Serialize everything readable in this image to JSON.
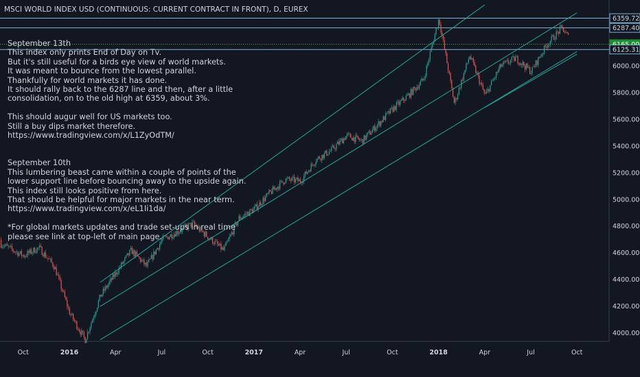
{
  "chart_data": {
    "type": "candlestick",
    "title": "MSCI WORLD INDEX USD (CONTINUOUS: CURRENT CONTRACT IN FRONT), D, EUREX",
    "xlabel": "",
    "ylabel": "",
    "ylim": [
      3860,
      6460
    ],
    "grid": false,
    "x_ticks": [
      "Oct",
      "2016",
      "Apr",
      "Jul",
      "Oct",
      "2017",
      "Apr",
      "Jul",
      "Oct",
      "2018",
      "Apr",
      "Jul",
      "Oct"
    ],
    "y_ticks": [
      "4000.0000",
      "4200.0000",
      "4400.0000",
      "4600.0000",
      "4800.0000",
      "5000.0000",
      "5200.0000",
      "5400.0000",
      "5600.0000",
      "5800.0000",
      "6000.0000"
    ],
    "price_path": [
      {
        "x": "2015-08",
        "y": 4700
      },
      {
        "x": "2015-10",
        "y": 4580
      },
      {
        "x": "2015-11",
        "y": 4640
      },
      {
        "x": "2015-12",
        "y": 4500
      },
      {
        "x": "2016-01",
        "y": 4150
      },
      {
        "x": "2016-02",
        "y": 3950
      },
      {
        "x": "2016-03",
        "y": 4280
      },
      {
        "x": "2016-04",
        "y": 4450
      },
      {
        "x": "2016-05",
        "y": 4620
      },
      {
        "x": "2016-06",
        "y": 4500
      },
      {
        "x": "2016-07",
        "y": 4700
      },
      {
        "x": "2016-08",
        "y": 4760
      },
      {
        "x": "2016-09",
        "y": 4820
      },
      {
        "x": "2016-10",
        "y": 4720
      },
      {
        "x": "2016-11",
        "y": 4620
      },
      {
        "x": "2016-12",
        "y": 4860
      },
      {
        "x": "2017-01",
        "y": 4930
      },
      {
        "x": "2017-02",
        "y": 5050
      },
      {
        "x": "2017-03",
        "y": 5150
      },
      {
        "x": "2017-04",
        "y": 5140
      },
      {
        "x": "2017-05",
        "y": 5300
      },
      {
        "x": "2017-06",
        "y": 5370
      },
      {
        "x": "2017-07",
        "y": 5480
      },
      {
        "x": "2017-08",
        "y": 5440
      },
      {
        "x": "2017-09",
        "y": 5560
      },
      {
        "x": "2017-10",
        "y": 5680
      },
      {
        "x": "2017-11",
        "y": 5780
      },
      {
        "x": "2017-12",
        "y": 5900
      },
      {
        "x": "2018-01",
        "y": 6359
      },
      {
        "x": "2018-02",
        "y": 5720
      },
      {
        "x": "2018-03",
        "y": 6080
      },
      {
        "x": "2018-04",
        "y": 5780
      },
      {
        "x": "2018-05",
        "y": 6000
      },
      {
        "x": "2018-06",
        "y": 6060
      },
      {
        "x": "2018-07",
        "y": 5960
      },
      {
        "x": "2018-08",
        "y": 6160
      },
      {
        "x": "2018-09",
        "y": 6287
      },
      {
        "x": "2018-10",
        "y": 6120
      },
      {
        "x": "2018-10",
        "y": 6165
      }
    ],
    "horizontal_levels": [
      {
        "label": "6359.7238",
        "value": 6359.7238,
        "color": "#7fb3d5"
      },
      {
        "label": "6287.4082",
        "value": 6287.4082,
        "color": "#7fb3d5"
      },
      {
        "label": "6165.0000",
        "value": 6165.0,
        "color": "#4caf50",
        "style": "dotted",
        "current": true
      },
      {
        "label": "6125.3128",
        "value": 6125.3128,
        "color": "#7fb3d5"
      }
    ],
    "channels": [
      {
        "name": "outer",
        "upper": [
          {
            "x": "2016-03",
            "y": 4380
          },
          {
            "x": "2018-04",
            "y": 6460
          }
        ],
        "lower": [
          {
            "x": "2016-03",
            "y": 3950
          },
          {
            "x": "2018-10",
            "y": 6110
          }
        ]
      },
      {
        "name": "inner",
        "upper": [
          {
            "x": "2016-03",
            "y": 4200
          },
          {
            "x": "2018-10",
            "y": 6400
          }
        ],
        "lower": [
          {
            "x": "2018-04",
            "y": 5690
          },
          {
            "x": "2018-10",
            "y": 6090
          }
        ]
      }
    ],
    "colors": {
      "up": "#26a69a",
      "down": "#ef5350",
      "bg": "#131722",
      "text": "#d1d4dc",
      "channel": "#26a69a",
      "level": "#7fb3d5"
    },
    "annotation": "September 13th\nThis index only prints End of Day on Tv.\nBut it's still useful for a birds eye view of world markets.\nIt was meant to bounce from the lowest parallel.\nThankfully for world markets it has done.\nIt should rally back to the 6287 line and then, after a little\nconsolidation, on to the old high at 6359, about 3%.\n\nThis should augur well for US markets too.\nStill a buy dips market therefore.\nhttps://www.tradingview.com/x/L1ZyOdTM/\n\n\nSeptember 10th\nThis lumbering beast came within a couple of points of the\nlower support line before bouncing away to the upside again.\nThis index still looks positive from here.\nThat should be helpful for major markets in the near term.\nhttps://www.tradingview.com/x/eL1Ii1da/\n\n*For global markets updates and trade set-ups in real time\nplease see link at top-left of main page."
  }
}
